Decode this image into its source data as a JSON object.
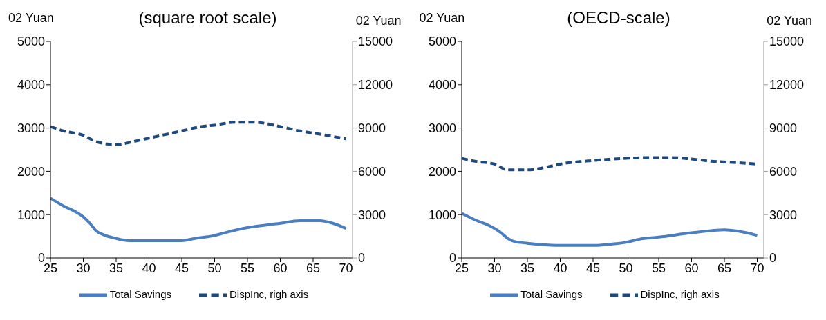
{
  "chart_data": [
    {
      "type": "line",
      "title": "(square root scale)",
      "ylabel": "02 Yuan",
      "y2label": "02 Yuan",
      "xlim": [
        25,
        71
      ],
      "xticks": [
        25,
        30,
        35,
        40,
        45,
        50,
        55,
        60,
        65,
        70
      ],
      "ylim": [
        0,
        5000
      ],
      "yticks": [
        0,
        1000,
        2000,
        3000,
        4000,
        5000
      ],
      "y2lim": [
        0,
        15000
      ],
      "y2ticks": [
        0,
        3000,
        6000,
        9000,
        12000,
        15000
      ],
      "grid": false,
      "legend": "bottom",
      "series": [
        {
          "name": "Total Savings",
          "color": "#4a7ebf",
          "line_style": "solid",
          "x": [
            25,
            27,
            29,
            30,
            31,
            32,
            33,
            35,
            37,
            40,
            45,
            47,
            50,
            52,
            55,
            60,
            63,
            66,
            68,
            70
          ],
          "values": [
            1380,
            1200,
            1050,
            950,
            800,
            620,
            540,
            450,
            400,
            400,
            400,
            450,
            520,
            600,
            700,
            800,
            860,
            860,
            800,
            680
          ]
        },
        {
          "name": "DispInc, righ axis",
          "color": "#1f497d",
          "line_style": "dashed",
          "axis": "y2",
          "x": [
            25,
            27,
            30,
            32,
            35,
            38,
            40,
            45,
            48,
            50,
            53,
            56,
            60,
            63,
            67,
            70
          ],
          "values": [
            9100,
            8800,
            8500,
            8050,
            7850,
            8100,
            8300,
            8800,
            9100,
            9200,
            9400,
            9400,
            9100,
            8800,
            8500,
            8250
          ]
        }
      ]
    },
    {
      "type": "line",
      "title": "(OECD-scale)",
      "ylabel": "02 Yuan",
      "y2label": "02 Yuan",
      "xlim": [
        25,
        71
      ],
      "xticks": [
        25,
        30,
        35,
        40,
        45,
        50,
        55,
        60,
        65,
        70
      ],
      "ylim": [
        0,
        5000
      ],
      "yticks": [
        0,
        1000,
        2000,
        3000,
        4000,
        5000
      ],
      "y2lim": [
        0,
        15000
      ],
      "y2ticks": [
        0,
        3000,
        6000,
        9000,
        12000,
        15000
      ],
      "grid": false,
      "legend": "bottom",
      "series": [
        {
          "name": "Total Savings",
          "color": "#4a7ebf",
          "line_style": "solid",
          "x": [
            25,
            27,
            29,
            30,
            31,
            32,
            33,
            35,
            37,
            40,
            45,
            47,
            50,
            52,
            55,
            60,
            63,
            65,
            67,
            70
          ],
          "values": [
            1030,
            880,
            760,
            680,
            580,
            450,
            380,
            340,
            310,
            290,
            290,
            310,
            360,
            430,
            480,
            580,
            630,
            650,
            620,
            520
          ]
        },
        {
          "name": "DispInc, righ axis",
          "color": "#1f497d",
          "line_style": "dashed",
          "axis": "y2",
          "x": [
            25,
            27,
            30,
            32,
            35,
            38,
            40,
            45,
            50,
            53,
            57,
            60,
            63,
            67,
            70
          ],
          "values": [
            6900,
            6700,
            6500,
            6100,
            6100,
            6300,
            6500,
            6750,
            6900,
            6950,
            6950,
            6850,
            6700,
            6600,
            6500
          ]
        }
      ]
    }
  ]
}
